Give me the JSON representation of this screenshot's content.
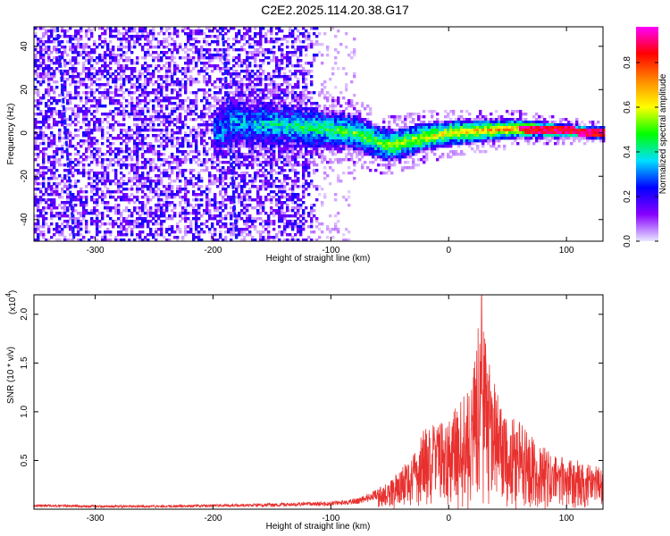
{
  "title": "C2E2.2025.114.20.38.G17",
  "chart_data": [
    {
      "type": "heatmap",
      "title": "C2E2.2025.114.20.38.G17",
      "xlabel": "Height of straight line (km)",
      "ylabel": "Frequency (Hz)",
      "xlim": [
        -352,
        131
      ],
      "ylim": [
        -50,
        49
      ],
      "xticks": [
        -300,
        -200,
        -100,
        0,
        100
      ],
      "yticks": [
        -40,
        -20,
        0,
        20,
        40
      ],
      "colorbar": {
        "label": "Normalized spectral amplitude",
        "range": [
          0.0,
          0.96
        ],
        "ticks": [
          "0.0",
          "0.2",
          "0.4",
          "0.6",
          "0.8"
        ],
        "colormap": [
          "#e8e8ff",
          "#8800ff",
          "#0000ff",
          "#00e0ff",
          "#00ff00",
          "#ffff00",
          "#ff8800",
          "#ff0000",
          "#ff00ff"
        ]
      },
      "grid": false,
      "features": {
        "noise_region_km": [
          -352,
          -110
        ],
        "signal_center_hz": [
          [
            -190,
            5
          ],
          [
            -150,
            4
          ],
          [
            -110,
            2
          ],
          [
            -80,
            0
          ],
          [
            -50,
            -6
          ],
          [
            -20,
            -2
          ],
          [
            0,
            0
          ],
          [
            30,
            1
          ],
          [
            60,
            2
          ],
          [
            100,
            1
          ],
          [
            131,
            0
          ]
        ],
        "diagonal_streaks_km": [
          [
            [
              -332,
              49
            ],
            [
              -318,
              -49
            ]
          ],
          [
            [
              -192,
              49
            ],
            [
              -180,
              -49
            ]
          ]
        ]
      }
    },
    {
      "type": "line",
      "xlabel": "Height of straight line (km)",
      "ylabel": "SNR (10 * v/v)",
      "y_multiplier": "(x10",
      "y_multiplier_exp": "4",
      "y_multiplier_close": ")",
      "xlim": [
        -352,
        131
      ],
      "ylim": [
        0,
        2.2
      ],
      "xticks": [
        -300,
        -200,
        -100,
        0,
        100
      ],
      "yticks": [
        "0.5",
        "1.0",
        "1.5",
        "2.0"
      ],
      "grid": false,
      "color": "#e8312f",
      "envelope_km": [
        [
          -352,
          0.05
        ],
        [
          -300,
          0.04
        ],
        [
          -250,
          0.04
        ],
        [
          -200,
          0.05
        ],
        [
          -150,
          0.06
        ],
        [
          -100,
          0.08
        ],
        [
          -75,
          0.12
        ],
        [
          -50,
          0.28
        ],
        [
          -40,
          0.45
        ],
        [
          -30,
          0.55
        ],
        [
          -20,
          0.85
        ],
        [
          -10,
          0.9
        ],
        [
          0,
          0.95
        ],
        [
          10,
          1.1
        ],
        [
          20,
          1.3
        ],
        [
          28,
          2.2
        ],
        [
          35,
          1.45
        ],
        [
          45,
          1.05
        ],
        [
          60,
          0.9
        ],
        [
          75,
          0.7
        ],
        [
          90,
          0.55
        ],
        [
          110,
          0.5
        ],
        [
          131,
          0.42
        ]
      ]
    }
  ]
}
